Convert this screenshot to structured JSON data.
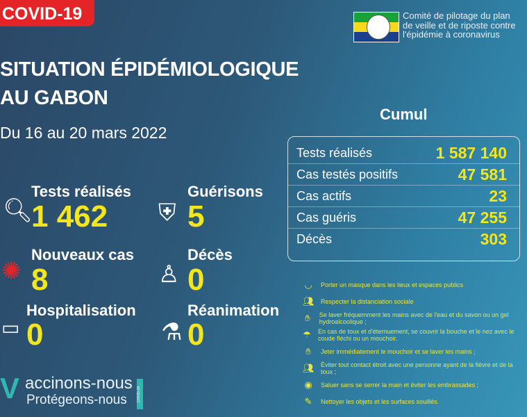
{
  "tag": "COVID-19",
  "title": [
    "SITUATION ÉPIDÉMIOLOGIQUE",
    "AU GABON"
  ],
  "date": "Du 16 au 20 mars 2022",
  "stats": [
    {
      "label": "Tests réalisés",
      "value": "1 462",
      "icon": "magnifier-icon"
    },
    {
      "label": "Guérisons",
      "value": "5",
      "icon": "shield-cross-icon"
    },
    {
      "label": "Nouveaux cas",
      "value": "8",
      "icon": "virus-icon"
    },
    {
      "label": "Décès",
      "value": "0",
      "icon": "person-cross-icon"
    },
    {
      "label": "Hospitalisation",
      "value": "0",
      "icon": "hospital-bed-icon"
    },
    {
      "label": "Réanimation",
      "value": "0",
      "icon": "oxygen-tank-icon"
    }
  ],
  "committee": [
    "Comité de pilotage du plan",
    "de veille et de riposte contre",
    "l'épidémie à coronavirus"
  ],
  "cumul": {
    "title": "Cumul",
    "rows": [
      {
        "label": "Tests réalisés",
        "value": "1 587 140"
      },
      {
        "label": "Cas testés positifs",
        "value": "47 581"
      },
      {
        "label": "Cas actifs",
        "value": "23"
      },
      {
        "label": "Cas guéris",
        "value": "47 255"
      },
      {
        "label": "Décès",
        "value": "303"
      }
    ]
  },
  "tips": [
    "Porter un masque dans les lieux et espaces publics",
    "Respecter la distanciation sociale",
    "Se laver fréquemment les mains avec de l'eau et du savon ou un gel hydroalcoolique ;",
    "En cas de toux et d'éternuement, se couvrir la bouche et le nez avec le coude fléchi ou un mouchoir.",
    "Jeter immédiatement le mouchoir et se laver les mains ;",
    "Éviter tout contact étroit avec une personne ayant de la fièvre et de la toux ;",
    "Saluer sans se serrer la main et éviter les embrassades ;",
    "Nettoyer les objets et les surfaces souillés."
  ],
  "vaccinons": {
    "line1": "accinons-nous",
    "line2": "Protégeons-nous",
    "badge": "COVID-19"
  },
  "colors": {
    "accent": "#f4e61c",
    "tag": "#e52427",
    "tips": "#e6e64a"
  }
}
